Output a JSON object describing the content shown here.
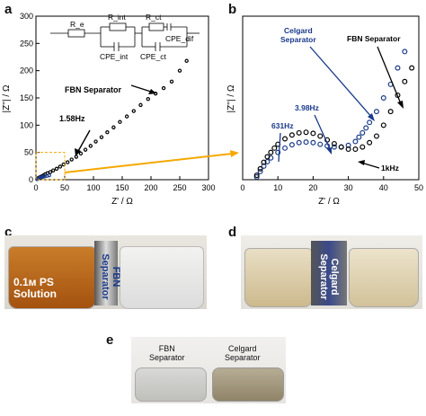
{
  "figure": {
    "panels": [
      "a",
      "b",
      "c",
      "d",
      "e"
    ]
  },
  "chart_data": [
    {
      "type": "scatter",
      "panel": "a",
      "xlabel": "Z' / Ω",
      "ylabel": "|Z''| / Ω",
      "xlim": [
        0,
        300
      ],
      "ylim": [
        0,
        300
      ],
      "xticks": [
        0,
        50,
        100,
        150,
        200,
        250,
        300
      ],
      "yticks": [
        0,
        50,
        100,
        150,
        200,
        250,
        300
      ],
      "series": [
        {
          "name": "FBN Separator",
          "marker": "open circle",
          "x": [
            2,
            4,
            6,
            8,
            10,
            13,
            16,
            20,
            25,
            30,
            36,
            42,
            48,
            55,
            62,
            70,
            78,
            86,
            95,
            104,
            114,
            124,
            135,
            146,
            158,
            170,
            182,
            195,
            208,
            222,
            236,
            250,
            262
          ],
          "y": [
            2,
            3,
            4,
            5,
            6,
            8,
            10,
            12,
            14,
            17,
            20,
            24,
            28,
            32,
            37,
            42,
            48,
            55,
            62,
            70,
            78,
            87,
            96,
            106,
            116,
            126,
            137,
            148,
            158,
            168,
            180,
            200,
            218
          ]
        },
        {
          "name": "",
          "marker": "open circle",
          "color": "#1a3a8a",
          "x": [
            2,
            4,
            6,
            9,
            12,
            15,
            19,
            23
          ],
          "y": [
            1,
            2,
            3,
            4,
            5,
            6,
            7,
            8
          ]
        }
      ],
      "annotations": [
        {
          "text": "FBN Separator",
          "x": 220,
          "y": 166
        },
        {
          "text": "1.58Hz",
          "x": 60,
          "y": 40
        }
      ],
      "circuit": {
        "labels": [
          "R_e",
          "R_int",
          "R_ct",
          "CPE_int",
          "CPE_ct",
          "CPE_dif"
        ]
      },
      "inset_box": {
        "x": [
          0,
          50
        ],
        "y": [
          0,
          50
        ]
      }
    },
    {
      "type": "scatter",
      "panel": "b",
      "xlabel": "Z' / Ω",
      "ylabel": "|Z''| / Ω",
      "xlim": [
        0,
        50
      ],
      "ylim": [
        0,
        30
      ],
      "xticks": [
        0,
        10,
        20,
        30,
        40,
        50
      ],
      "yticks": [],
      "series": [
        {
          "name": "Celgard Separator",
          "marker": "open circle",
          "color": "#1a3a8a",
          "x": [
            4,
            5,
            6,
            7,
            8,
            10,
            12,
            14,
            16,
            18,
            20,
            22,
            24,
            26,
            28,
            30,
            32,
            33,
            34,
            35,
            36,
            38,
            40,
            42,
            44,
            46
          ],
          "y": [
            0.5,
            1.5,
            2.5,
            3.3,
            4.0,
            5.0,
            5.8,
            6.4,
            6.8,
            6.9,
            6.8,
            6.5,
            6.2,
            6.0,
            6.0,
            6.3,
            7.0,
            7.8,
            8.6,
            9.5,
            10.5,
            12.5,
            15.0,
            17.5,
            20.5,
            23.5
          ]
        },
        {
          "name": "FBN Separator",
          "marker": "open circle",
          "color": "#000000",
          "x": [
            4,
            5,
            6,
            7,
            8,
            9,
            10,
            12,
            14,
            16,
            18,
            20,
            22,
            24,
            26,
            28,
            30,
            32,
            34,
            36,
            38,
            40,
            42,
            44,
            46,
            48
          ],
          "y": [
            0.8,
            2.0,
            3.2,
            4.2,
            5.0,
            5.8,
            6.5,
            7.5,
            8.2,
            8.6,
            8.7,
            8.5,
            8.0,
            7.3,
            6.6,
            6.0,
            5.6,
            5.6,
            6.0,
            6.8,
            8.0,
            10.0,
            12.5,
            15.5,
            18.0,
            20.5
          ]
        }
      ],
      "annotations": [
        {
          "text": "Celgard Separator",
          "color": "#1a3a8a"
        },
        {
          "text": "FBN Separator",
          "color": "#000000"
        },
        {
          "text": "3.98Hz",
          "color": "#1a3a8a"
        },
        {
          "text": "631Hz",
          "color": "#1a3a8a"
        },
        {
          "text": "1kHz",
          "color": "#000000"
        }
      ]
    }
  ],
  "photos": {
    "c": {
      "left_label_line1": "0.1м PS",
      "left_label_line2": "Solution",
      "separator_label": "FBN Separator"
    },
    "d": {
      "separator_label": "Celgard Separator"
    },
    "e": {
      "left_label_line1": "FBN",
      "left_label_line2": "Separator",
      "right_label_line1": "Celgard",
      "right_label_line2": "Separator"
    }
  },
  "colors": {
    "accent_orange": "#f5a800",
    "celgard_blue": "#1a3a8a"
  }
}
